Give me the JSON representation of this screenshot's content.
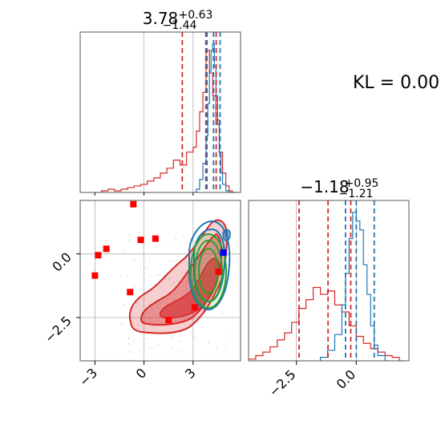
{
  "kl_label": "KL = 0.00",
  "colors": {
    "red": "#d62728",
    "blue": "#1f77b4",
    "green": "#2ca02c",
    "marker_red": "#ff0000",
    "marker_blue": "#0000ff",
    "grid": "#b0b0b0",
    "frame": "#555555"
  },
  "chart_data": [
    {
      "type": "histogram",
      "panel": "marginal-param-1",
      "title": {
        "value": "3.78",
        "upper": "+0.63",
        "lower": "−1.44"
      },
      "xlim": [
        -3.9,
        5.9
      ],
      "gridlines_x": [
        0,
        3
      ],
      "grid": true,
      "quantile_lines": [
        {
          "series": "red",
          "values": [
            2.34,
            3.78,
            4.41
          ]
        },
        {
          "series": "blue",
          "values": [
            3.85,
            4.25,
            4.65
          ]
        }
      ],
      "series": [
        {
          "name": "red",
          "bins": [
            -2.6,
            -2.2,
            -1.8,
            -1.4,
            -1.0,
            -0.6,
            -0.2,
            0.2,
            0.6,
            1.0,
            1.4,
            1.8,
            2.2,
            2.6,
            3.0,
            3.2,
            3.4,
            3.6,
            3.8,
            4.0,
            4.2,
            4.4,
            4.6,
            4.8,
            5.0,
            5.2,
            5.4
          ],
          "heights": [
            0.01,
            0.02,
            0.01,
            0.02,
            0.03,
            0.04,
            0.05,
            0.07,
            0.09,
            0.12,
            0.15,
            0.2,
            0.17,
            0.25,
            0.28,
            0.38,
            0.5,
            0.62,
            0.88,
            0.74,
            0.6,
            0.45,
            0.25,
            0.12,
            0.04,
            0.01,
            0.0
          ]
        },
        {
          "name": "blue",
          "bins": [
            3.2,
            3.4,
            3.6,
            3.8,
            3.9,
            4.0,
            4.1,
            4.2,
            4.3,
            4.4,
            4.5,
            4.6,
            4.7,
            4.8,
            5.0,
            5.2
          ],
          "heights": [
            0.02,
            0.08,
            0.18,
            0.35,
            0.55,
            0.75,
            0.88,
            0.92,
            0.78,
            0.6,
            0.42,
            0.25,
            0.12,
            0.05,
            0.01,
            0.0
          ]
        }
      ]
    },
    {
      "type": "histogram",
      "panel": "marginal-param-2",
      "title": {
        "value": "−1.18",
        "upper": "+0.95",
        "lower": "−1.21"
      },
      "xlim": [
        -4.5,
        2.2
      ],
      "xticks": [
        -2.5,
        0.0
      ],
      "xtick_labels": [
        "−2.5",
        "0.0"
      ],
      "grid": true,
      "quantile_lines": [
        {
          "series": "red",
          "values": [
            -2.39,
            -1.18,
            -0.23
          ]
        },
        {
          "series": "blue",
          "values": [
            -0.45,
            0.0,
            0.75
          ]
        }
      ],
      "series": [
        {
          "name": "red",
          "bins": [
            -4.5,
            -4.2,
            -3.9,
            -3.6,
            -3.3,
            -3.0,
            -2.7,
            -2.4,
            -2.1,
            -1.8,
            -1.5,
            -1.2,
            -0.9,
            -0.6,
            -0.3,
            0.0,
            0.3,
            0.6,
            0.9,
            1.2,
            1.5,
            1.8
          ],
          "heights": [
            0.01,
            0.03,
            0.05,
            0.08,
            0.12,
            0.16,
            0.22,
            0.3,
            0.35,
            0.42,
            0.38,
            0.4,
            0.32,
            0.28,
            0.2,
            0.14,
            0.1,
            0.07,
            0.05,
            0.03,
            0.02,
            0.0
          ]
        },
        {
          "name": "blue",
          "bins": [
            -1.5,
            -1.2,
            -0.9,
            -0.6,
            -0.45,
            -0.3,
            -0.15,
            0.0,
            0.15,
            0.3,
            0.45,
            0.6,
            0.75,
            0.9,
            1.2
          ],
          "heights": [
            0.02,
            0.06,
            0.15,
            0.32,
            0.5,
            0.7,
            0.85,
            0.8,
            0.75,
            0.55,
            0.38,
            0.2,
            0.09,
            0.03,
            0.0
          ]
        }
      ]
    },
    {
      "type": "contour",
      "panel": "joint-param-1-vs-param-2",
      "xlim": [
        -3.9,
        5.9
      ],
      "ylim": [
        -4.2,
        2.1
      ],
      "xticks": [
        -3,
        0,
        3
      ],
      "xtick_labels": [
        "−3",
        "0",
        "3"
      ],
      "yticks": [
        -2.5,
        0.0
      ],
      "ytick_labels": [
        "−2.5",
        "0.0"
      ],
      "grid": true,
      "red_markers": [
        [
          -0.65,
          1.95
        ],
        [
          -3.0,
          -0.85
        ],
        [
          -2.8,
          -0.05
        ],
        [
          -2.3,
          0.2
        ],
        [
          -0.2,
          0.55
        ],
        [
          0.7,
          0.6
        ],
        [
          -0.85,
          -1.5
        ],
        [
          1.5,
          -2.6
        ],
        [
          3.1,
          -2.1
        ],
        [
          4.55,
          -0.7
        ]
      ],
      "blue_marker": [
        4.85,
        0.05
      ],
      "series": [
        {
          "name": "red-filled-density",
          "center": [
            3.3,
            -0.95
          ]
        },
        {
          "name": "blue-contours",
          "center": [
            4.55,
            -0.4
          ]
        },
        {
          "name": "green-contours",
          "center": [
            4.55,
            -0.65
          ]
        }
      ]
    }
  ]
}
